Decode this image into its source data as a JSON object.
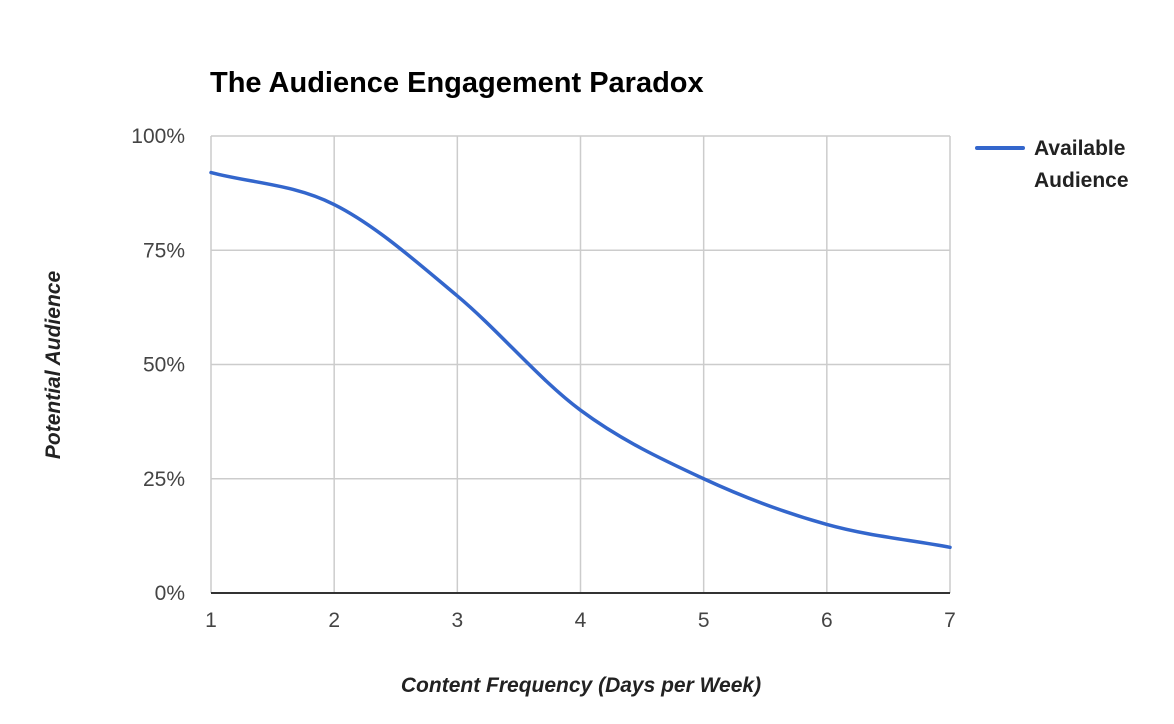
{
  "chart_data": {
    "type": "line",
    "title": "The Audience Engagement Paradox",
    "xlabel": "Content Frequency (Days per Week)",
    "ylabel": "Potential Audience",
    "x": [
      1,
      2,
      3,
      4,
      5,
      6,
      7
    ],
    "x_ticks": [
      "1",
      "2",
      "3",
      "4",
      "5",
      "6",
      "7"
    ],
    "y_ticks": [
      "0%",
      "25%",
      "50%",
      "75%",
      "100%"
    ],
    "y_tick_values": [
      0,
      25,
      50,
      75,
      100
    ],
    "xlim": [
      1,
      7
    ],
    "ylim": [
      0,
      100
    ],
    "grid": true,
    "legend_position": "top-right",
    "series": [
      {
        "name": "Available Audience",
        "name_lines": [
          "Available",
          "Audience"
        ],
        "color": "#3366cc",
        "values": [
          92,
          85,
          65,
          40,
          25,
          15,
          10
        ]
      }
    ]
  }
}
